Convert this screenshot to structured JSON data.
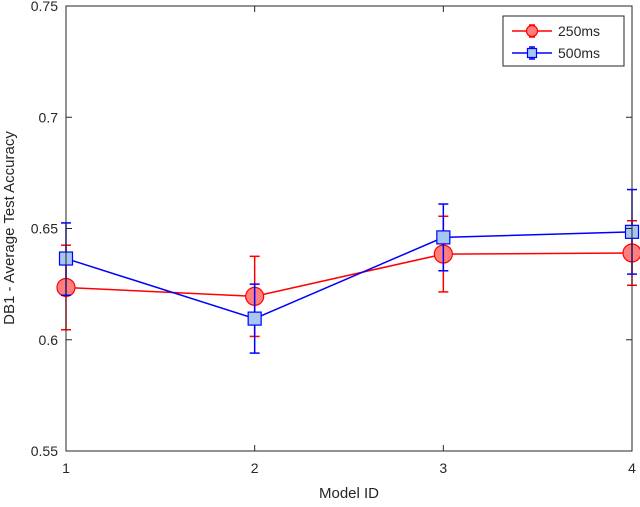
{
  "chart_data": {
    "type": "line",
    "title": "",
    "xlabel": "Model ID",
    "ylabel": "DB1 - Average Test Accuracy",
    "xlim": [
      1,
      4
    ],
    "ylim": [
      0.55,
      0.75
    ],
    "x_ticks": [
      "1",
      "2",
      "3",
      "4"
    ],
    "y_ticks": [
      "0.55",
      "0.6",
      "0.65",
      "0.7",
      "0.75"
    ],
    "x": [
      1,
      2,
      3,
      4
    ],
    "legend_position": "top-right",
    "series": [
      {
        "name": "250ms",
        "marker": "circle",
        "line_color": "#ff0000",
        "marker_fill": "#ff7f7f",
        "values": [
          0.6235,
          0.6195,
          0.6385,
          0.639
        ],
        "err_low": [
          0.6045,
          0.6015,
          0.6215,
          0.6245
        ],
        "err_high": [
          0.6425,
          0.6375,
          0.6555,
          0.6535
        ]
      },
      {
        "name": "500ms",
        "marker": "square",
        "line_color": "#0000ff",
        "marker_fill": "#a6c8f0",
        "values": [
          0.6365,
          0.6095,
          0.646,
          0.6485
        ],
        "err_low": [
          0.62,
          0.594,
          0.631,
          0.6295
        ],
        "err_high": [
          0.6525,
          0.625,
          0.661,
          0.6675
        ]
      }
    ]
  }
}
